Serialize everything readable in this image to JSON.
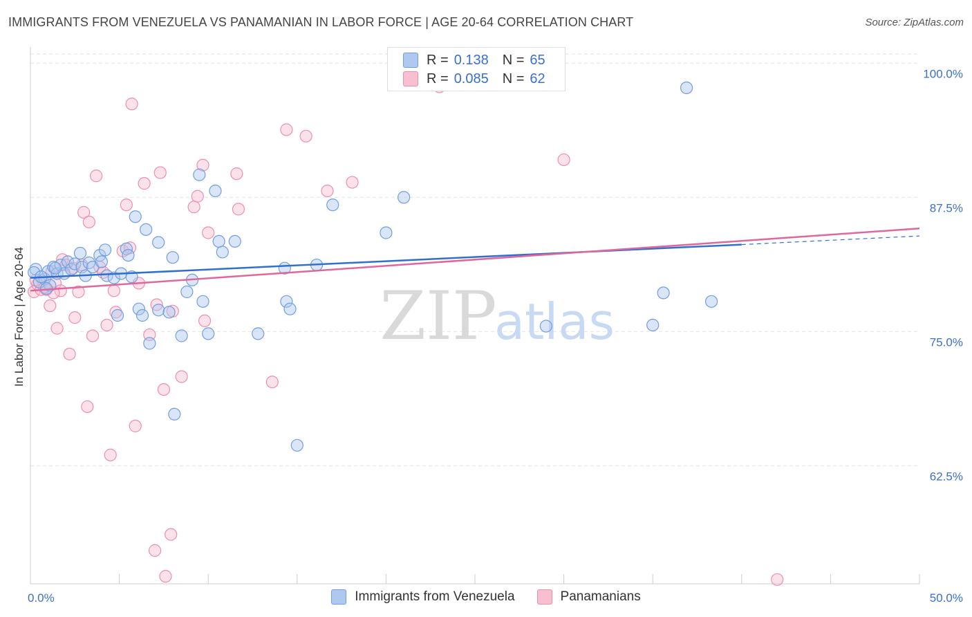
{
  "header": {
    "title": "IMMIGRANTS FROM VENEZUELA VS PANAMANIAN IN LABOR FORCE | AGE 20-64 CORRELATION CHART",
    "source": "Source: ZipAtlas.com"
  },
  "watermark": {
    "zip": "ZIP",
    "atlas": "atlas"
  },
  "legend": {
    "series1": {
      "r_label": "R =",
      "r_value": "0.138",
      "n_label": "N =",
      "n_value": "65"
    },
    "series2": {
      "r_label": "R =",
      "r_value": "0.085",
      "n_label": "N =",
      "n_value": "62"
    }
  },
  "chart_data": {
    "type": "scatter",
    "ylabel": "In Labor Force | Age 20-64",
    "xlim": [
      0,
      50
    ],
    "ylim": [
      51.5,
      101.5
    ],
    "x_tick_labels": [
      "0.0%",
      "50.0%"
    ],
    "y_ticks": [
      62.5,
      75.0,
      87.5,
      100.0
    ],
    "y_tick_labels": [
      "62.5%",
      "75.0%",
      "87.5%",
      "100.0%"
    ],
    "grid": true,
    "legend_position": "top-center",
    "colors": {
      "series1_fill": "#aec8f0",
      "series1_stroke": "#6f9ee0",
      "series1_line": "#2f6fd0",
      "series2_fill": "#f7bfd0",
      "series2_stroke": "#ec8fae",
      "series2_line": "#e0679a",
      "tick_label": "#3a6fd1"
    },
    "series": [
      {
        "name": "Immigrants from Venezuela",
        "trend": {
          "x": [
            0,
            40
          ],
          "y": [
            80.0,
            83.1
          ],
          "dashed_to_x": 50,
          "dashed_to_y": 83.9
        },
        "points": [
          [
            0.3,
            80.8
          ],
          [
            0.5,
            79.6
          ],
          [
            0.8,
            79.9
          ],
          [
            1.0,
            80.6
          ],
          [
            1.1,
            79.3
          ],
          [
            1.3,
            81.0
          ],
          [
            1.5,
            80.4
          ],
          [
            1.7,
            81.2
          ],
          [
            1.9,
            80.4
          ],
          [
            2.1,
            81.5
          ],
          [
            2.3,
            80.8
          ],
          [
            2.5,
            81.3
          ],
          [
            2.8,
            82.3
          ],
          [
            2.9,
            81.0
          ],
          [
            3.1,
            80.2
          ],
          [
            3.3,
            81.4
          ],
          [
            3.5,
            81.0
          ],
          [
            3.9,
            82.1
          ],
          [
            4.0,
            81.5
          ],
          [
            4.2,
            82.6
          ],
          [
            4.3,
            80.2
          ],
          [
            4.7,
            80.0
          ],
          [
            4.9,
            76.5
          ],
          [
            5.1,
            80.4
          ],
          [
            5.4,
            82.7
          ],
          [
            5.5,
            82.1
          ],
          [
            5.7,
            80.1
          ],
          [
            5.9,
            85.7
          ],
          [
            6.1,
            77.1
          ],
          [
            6.3,
            76.5
          ],
          [
            6.5,
            84.5
          ],
          [
            6.7,
            73.9
          ],
          [
            7.2,
            83.3
          ],
          [
            7.2,
            77.0
          ],
          [
            7.8,
            76.8
          ],
          [
            8.0,
            81.9
          ],
          [
            8.1,
            67.3
          ],
          [
            8.5,
            74.6
          ],
          [
            8.8,
            78.7
          ],
          [
            9.1,
            79.8
          ],
          [
            9.5,
            89.6
          ],
          [
            9.7,
            77.8
          ],
          [
            10.0,
            74.8
          ],
          [
            10.4,
            88.1
          ],
          [
            10.6,
            83.4
          ],
          [
            10.8,
            82.4
          ],
          [
            11.5,
            83.4
          ],
          [
            12.8,
            74.8
          ],
          [
            14.3,
            80.9
          ],
          [
            14.4,
            77.8
          ],
          [
            14.6,
            77.1
          ],
          [
            15.0,
            64.4
          ],
          [
            16.1,
            81.2
          ],
          [
            17.0,
            86.8
          ],
          [
            20.0,
            84.2
          ],
          [
            21.0,
            87.5
          ],
          [
            29.0,
            75.5
          ],
          [
            35.0,
            75.6
          ],
          [
            35.6,
            78.6
          ],
          [
            36.9,
            97.7
          ],
          [
            38.3,
            77.8
          ],
          [
            0.2,
            80.5
          ],
          [
            0.6,
            80.1
          ],
          [
            0.9,
            79.0
          ],
          [
            1.4,
            80.9
          ]
        ]
      },
      {
        "name": "Panamanians",
        "trend": {
          "x": [
            0,
            50
          ],
          "y": [
            78.8,
            84.6
          ]
        },
        "points": [
          [
            0.2,
            78.7
          ],
          [
            0.4,
            79.4
          ],
          [
            0.6,
            78.9
          ],
          [
            0.7,
            79.7
          ],
          [
            0.9,
            78.9
          ],
          [
            1.1,
            77.4
          ],
          [
            1.2,
            80.6
          ],
          [
            1.4,
            79.5
          ],
          [
            1.5,
            75.3
          ],
          [
            1.7,
            78.8
          ],
          [
            1.8,
            81.7
          ],
          [
            2.0,
            81.2
          ],
          [
            2.2,
            72.9
          ],
          [
            2.4,
            80.9
          ],
          [
            2.5,
            76.3
          ],
          [
            2.7,
            78.7
          ],
          [
            2.9,
            81.2
          ],
          [
            3.0,
            86.1
          ],
          [
            3.2,
            68.0
          ],
          [
            3.3,
            85.2
          ],
          [
            3.5,
            74.6
          ],
          [
            3.7,
            89.5
          ],
          [
            3.9,
            81.0
          ],
          [
            4.1,
            80.5
          ],
          [
            4.3,
            75.6
          ],
          [
            4.5,
            63.5
          ],
          [
            4.7,
            78.8
          ],
          [
            4.8,
            76.8
          ],
          [
            5.2,
            82.5
          ],
          [
            5.4,
            86.8
          ],
          [
            5.6,
            82.8
          ],
          [
            5.7,
            96.2
          ],
          [
            5.9,
            66.2
          ],
          [
            6.1,
            79.5
          ],
          [
            6.4,
            88.8
          ],
          [
            6.7,
            74.7
          ],
          [
            7.0,
            54.6
          ],
          [
            7.1,
            77.5
          ],
          [
            7.3,
            89.8
          ],
          [
            7.5,
            69.6
          ],
          [
            7.6,
            52.2
          ],
          [
            7.9,
            56.1
          ],
          [
            8.0,
            76.9
          ],
          [
            8.5,
            70.8
          ],
          [
            9.2,
            86.6
          ],
          [
            9.4,
            87.6
          ],
          [
            9.7,
            90.5
          ],
          [
            9.8,
            76.0
          ],
          [
            10.0,
            84.2
          ],
          [
            11.6,
            89.7
          ],
          [
            11.7,
            86.4
          ],
          [
            13.6,
            70.3
          ],
          [
            14.4,
            93.8
          ],
          [
            15.5,
            93.2
          ],
          [
            16.7,
            88.1
          ],
          [
            18.1,
            88.9
          ],
          [
            30.0,
            91.0
          ],
          [
            42.0,
            51.9
          ],
          [
            23.0,
            97.8
          ],
          [
            0.3,
            79.8
          ],
          [
            0.8,
            79.1
          ],
          [
            1.3,
            78.6
          ]
        ]
      }
    ]
  }
}
